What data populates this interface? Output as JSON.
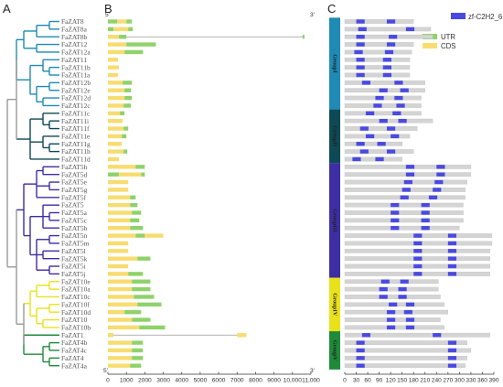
{
  "panels": [
    "A",
    "B",
    "C"
  ],
  "genes": [
    "FaZAT8",
    "FaZAT8a",
    "FaZAT8b",
    "FaZAT12",
    "FaZAT12a",
    "FaZAT11",
    "FaZAT11b",
    "FaZAT11a",
    "FaZAT12b",
    "FaZAT12e",
    "FaZAT12d",
    "FaZAT12c",
    "FaZAT11c",
    "FaZAT11i",
    "FaZAT11f",
    "FaZAT11e",
    "FaZAT11g",
    "FaZAT11h",
    "FaZAT11d",
    "FaZAT5h",
    "FaZAT5d",
    "FaZAT5e",
    "FaZAT5g",
    "FaZAT5f",
    "FaZAT5",
    "FaZAT5a",
    "FaZAT5c",
    "FaZAT5b",
    "FaZAT5n",
    "FaZAT5m",
    "FaZAT5l",
    "FaZAT5k",
    "FaZAT5i",
    "FaZAT5j",
    "FaZAT10e",
    "FaZAT10a",
    "FaZAT10c",
    "FaZAT10f",
    "FaZAT10d",
    "FaZAT10",
    "FaZAT10b",
    "FaZAT1",
    "FaZAT4b",
    "FaZAT4c",
    "FaZAT4",
    "FaZAT4a"
  ],
  "tree_colors": {
    "g1": "#1e8ab5",
    "g2": "#0d4a55",
    "g3": "#3d2ea3",
    "g4": "#e9e21a",
    "g5": "#1f8a3a",
    "base": "#9a9a9a"
  },
  "structure": {
    "axis_min": 0,
    "axis_max": 11000,
    "ticks": [
      0,
      1000,
      2000,
      3000,
      4000,
      5000,
      6000,
      7000,
      8000,
      9000,
      10000,
      11000
    ],
    "tick_labels": [
      "0",
      "1000",
      "2000",
      "3000",
      "4000",
      "5000",
      "6000",
      "7000",
      "8000",
      "9000",
      "10,000",
      "11,000"
    ],
    "end5": "5'",
    "end3": "3'",
    "legend": [
      {
        "label": "UTR",
        "color": "#8fd26a"
      },
      {
        "label": "CDS",
        "color": "#f7dc6f"
      }
    ],
    "genes": [
      {
        "segs": [
          [
            0,
            500,
            "u"
          ],
          [
            500,
            1000,
            "c"
          ],
          [
            1000,
            1300,
            "u"
          ]
        ]
      },
      {
        "segs": [
          [
            0,
            300,
            "u"
          ],
          [
            300,
            1100,
            "c"
          ],
          [
            1100,
            1350,
            "u"
          ]
        ]
      },
      {
        "segs": [
          [
            0,
            600,
            "c"
          ],
          [
            600,
            1000,
            "u"
          ]
        ],
        "line_to": 10600,
        "end_seg": [
          10550,
          10650,
          "u"
        ]
      },
      {
        "segs": [
          [
            0,
            1000,
            "c"
          ],
          [
            1000,
            2600,
            "u"
          ]
        ]
      },
      {
        "segs": [
          [
            0,
            900,
            "c"
          ],
          [
            900,
            1900,
            "u"
          ]
        ]
      },
      {
        "segs": [
          [
            0,
            550,
            "c"
          ]
        ]
      },
      {
        "segs": [
          [
            0,
            600,
            "c"
          ]
        ]
      },
      {
        "segs": [
          [
            0,
            550,
            "c"
          ]
        ]
      },
      {
        "segs": [
          [
            0,
            800,
            "c"
          ],
          [
            800,
            1300,
            "u"
          ]
        ]
      },
      {
        "segs": [
          [
            0,
            900,
            "c"
          ],
          [
            900,
            1250,
            "u"
          ]
        ]
      },
      {
        "segs": [
          [
            0,
            900,
            "c"
          ],
          [
            900,
            1300,
            "u"
          ]
        ]
      },
      {
        "segs": [
          [
            0,
            850,
            "c"
          ],
          [
            850,
            1250,
            "u"
          ]
        ]
      },
      {
        "segs": [
          [
            0,
            650,
            "c"
          ],
          [
            650,
            900,
            "u"
          ]
        ]
      },
      {
        "segs": [
          [
            0,
            800,
            "c"
          ]
        ]
      },
      {
        "segs": [
          [
            0,
            850,
            "c"
          ],
          [
            850,
            1100,
            "u"
          ]
        ]
      },
      {
        "segs": [
          [
            0,
            750,
            "c"
          ],
          [
            750,
            1000,
            "u"
          ]
        ]
      },
      {
        "segs": [
          [
            0,
            750,
            "c"
          ]
        ]
      },
      {
        "segs": [
          [
            0,
            850,
            "c"
          ],
          [
            850,
            1050,
            "u"
          ]
        ]
      },
      {
        "segs": [
          [
            0,
            600,
            "c"
          ]
        ]
      },
      {
        "segs": [
          [
            0,
            1500,
            "c"
          ],
          [
            1500,
            2000,
            "u"
          ]
        ]
      },
      {
        "segs": [
          [
            0,
            600,
            "u"
          ],
          [
            600,
            1800,
            "c"
          ],
          [
            1800,
            2000,
            "u"
          ]
        ]
      },
      {
        "segs": [
          [
            0,
            1100,
            "c"
          ]
        ]
      },
      {
        "segs": [
          [
            0,
            1100,
            "c"
          ]
        ]
      },
      {
        "segs": [
          [
            0,
            1200,
            "c"
          ],
          [
            1200,
            1500,
            "u"
          ]
        ]
      },
      {
        "segs": [
          [
            0,
            1200,
            "c"
          ],
          [
            1200,
            1600,
            "u"
          ]
        ]
      },
      {
        "segs": [
          [
            0,
            1300,
            "c"
          ],
          [
            1300,
            1800,
            "u"
          ]
        ]
      },
      {
        "segs": [
          [
            0,
            1200,
            "c"
          ],
          [
            1200,
            1700,
            "u"
          ]
        ]
      },
      {
        "segs": [
          [
            0,
            1200,
            "c"
          ],
          [
            1200,
            1900,
            "u"
          ]
        ]
      },
      {
        "segs": [
          [
            0,
            1500,
            "c"
          ],
          [
            1500,
            2000,
            "u"
          ],
          [
            2000,
            3000,
            "c"
          ]
        ]
      },
      {
        "segs": [
          [
            0,
            1100,
            "c"
          ]
        ]
      },
      {
        "segs": [
          [
            0,
            1100,
            "c"
          ]
        ]
      },
      {
        "segs": [
          [
            0,
            1600,
            "c"
          ],
          [
            1600,
            2300,
            "u"
          ]
        ]
      },
      {
        "segs": [
          [
            0,
            1100,
            "c"
          ]
        ]
      },
      {
        "segs": [
          [
            0,
            1100,
            "c"
          ],
          [
            1100,
            1900,
            "u"
          ]
        ]
      },
      {
        "segs": [
          [
            0,
            1300,
            "c"
          ],
          [
            1300,
            2300,
            "u"
          ]
        ]
      },
      {
        "segs": [
          [
            0,
            1300,
            "c"
          ],
          [
            1300,
            2300,
            "u"
          ]
        ]
      },
      {
        "segs": [
          [
            0,
            1400,
            "c"
          ],
          [
            1400,
            2500,
            "u"
          ]
        ]
      },
      {
        "segs": [
          [
            0,
            1600,
            "c"
          ],
          [
            1600,
            2900,
            "u"
          ]
        ]
      },
      {
        "segs": [
          [
            0,
            900,
            "c"
          ],
          [
            900,
            1800,
            "u"
          ]
        ]
      },
      {
        "segs": [
          [
            0,
            1300,
            "c"
          ],
          [
            1300,
            2300,
            "u"
          ]
        ]
      },
      {
        "segs": [
          [
            0,
            1700,
            "c"
          ],
          [
            1700,
            3100,
            "u"
          ]
        ]
      },
      {
        "segs": [
          [
            0,
            300,
            "c"
          ]
        ],
        "line_to": 7300,
        "end_seg": [
          7000,
          7500,
          "c"
        ]
      },
      {
        "segs": [
          [
            0,
            1300,
            "c"
          ],
          [
            1300,
            1900,
            "u"
          ]
        ]
      },
      {
        "segs": [
          [
            0,
            1300,
            "c"
          ],
          [
            1300,
            1900,
            "u"
          ]
        ]
      },
      {
        "segs": [
          [
            0,
            1300,
            "c"
          ],
          [
            1300,
            1900,
            "u"
          ]
        ]
      },
      {
        "segs": [
          [
            0,
            1200,
            "c"
          ],
          [
            1200,
            1800,
            "u"
          ]
        ]
      }
    ]
  },
  "motifs": {
    "axis_max": 390,
    "ticks": [
      0,
      30,
      60,
      90,
      120,
      150,
      180,
      210,
      240,
      270,
      300,
      330,
      360,
      390
    ],
    "legend": "zf-C2H2_6",
    "legend_color": "#4a4ae0",
    "groups": [
      {
        "label": "GroupI",
        "color": "#1e8ab5",
        "from": 0,
        "to": 11
      },
      {
        "label": "GroupII",
        "color": "#0d4a55",
        "from": 12,
        "to": 18
      },
      {
        "label": "GroupIII",
        "color": "#3d2ea3",
        "from": 19,
        "to": 33
      },
      {
        "label": "GroupIV",
        "color": "#e9e21a",
        "from": 34,
        "to": 40
      },
      {
        "label": "GroupV",
        "color": "#1f8a3a",
        "from": 41,
        "to": 45
      }
    ],
    "genes": [
      {
        "len": 180,
        "m": [
          30,
          110
        ]
      },
      {
        "len": 225,
        "m": [
          35,
          160
        ]
      },
      {
        "len": 230,
        "m": [
          30,
          115
        ]
      },
      {
        "len": 180,
        "m": [
          30,
          110
        ]
      },
      {
        "len": 175,
        "m": [
          25,
          105
        ]
      },
      {
        "len": 170,
        "m": [
          30,
          100
        ]
      },
      {
        "len": 170,
        "m": [
          30,
          100
        ]
      },
      {
        "len": 170,
        "m": [
          30,
          100
        ]
      },
      {
        "len": 210,
        "m": [
          45,
          130
        ]
      },
      {
        "len": 210,
        "m": [
          90,
          145
        ]
      },
      {
        "len": 200,
        "m": [
          80,
          130
        ]
      },
      {
        "len": 200,
        "m": [
          75,
          135
        ]
      },
      {
        "len": 200,
        "m": [
          55,
          125
        ]
      },
      {
        "len": 230,
        "m": [
          90,
          140
        ]
      },
      {
        "len": 190,
        "m": [
          40,
          110
        ]
      },
      {
        "len": 170,
        "m": [
          55,
          120
        ]
      },
      {
        "len": 150,
        "m": [
          30,
          85
        ]
      },
      {
        "len": 180,
        "m": [
          40,
          110
        ]
      },
      {
        "len": 150,
        "m": [
          20,
          80
        ]
      },
      {
        "len": 330,
        "m": [
          160,
          240
        ]
      },
      {
        "len": 330,
        "m": [
          160,
          240
        ]
      },
      {
        "len": 320,
        "m": [
          155,
          235
        ]
      },
      {
        "len": 315,
        "m": [
          150,
          230
        ]
      },
      {
        "len": 315,
        "m": [
          145,
          220
        ]
      },
      {
        "len": 310,
        "m": [
          120,
          200
        ]
      },
      {
        "len": 310,
        "m": [
          120,
          200
        ]
      },
      {
        "len": 310,
        "m": [
          120,
          200
        ]
      },
      {
        "len": 300,
        "m": [
          120,
          200
        ]
      },
      {
        "len": 385,
        "m": [
          180,
          270
        ]
      },
      {
        "len": 385,
        "m": [
          180,
          270
        ]
      },
      {
        "len": 380,
        "m": [
          180,
          270
        ]
      },
      {
        "len": 380,
        "m": [
          180,
          270
        ]
      },
      {
        "len": 380,
        "m": [
          180,
          270
        ]
      },
      {
        "len": 380,
        "m": [
          180,
          270
        ]
      },
      {
        "len": 245,
        "m": [
          95,
          145
        ]
      },
      {
        "len": 245,
        "m": [
          90,
          140
        ]
      },
      {
        "len": 250,
        "m": [
          90,
          140
        ]
      },
      {
        "len": 260,
        "m": [
          115,
          160
        ]
      },
      {
        "len": 270,
        "m": [
          110,
          155
        ]
      },
      {
        "len": 250,
        "m": [
          110,
          160
        ]
      },
      {
        "len": 260,
        "m": [
          110,
          160
        ]
      },
      {
        "len": 380,
        "m": [
          45,
          230
        ]
      },
      {
        "len": 320,
        "m": [
          30,
          270
        ]
      },
      {
        "len": 330,
        "m": [
          30,
          270
        ]
      },
      {
        "len": 320,
        "m": [
          30,
          270
        ]
      },
      {
        "len": 315,
        "m": [
          30,
          270
        ]
      }
    ]
  }
}
